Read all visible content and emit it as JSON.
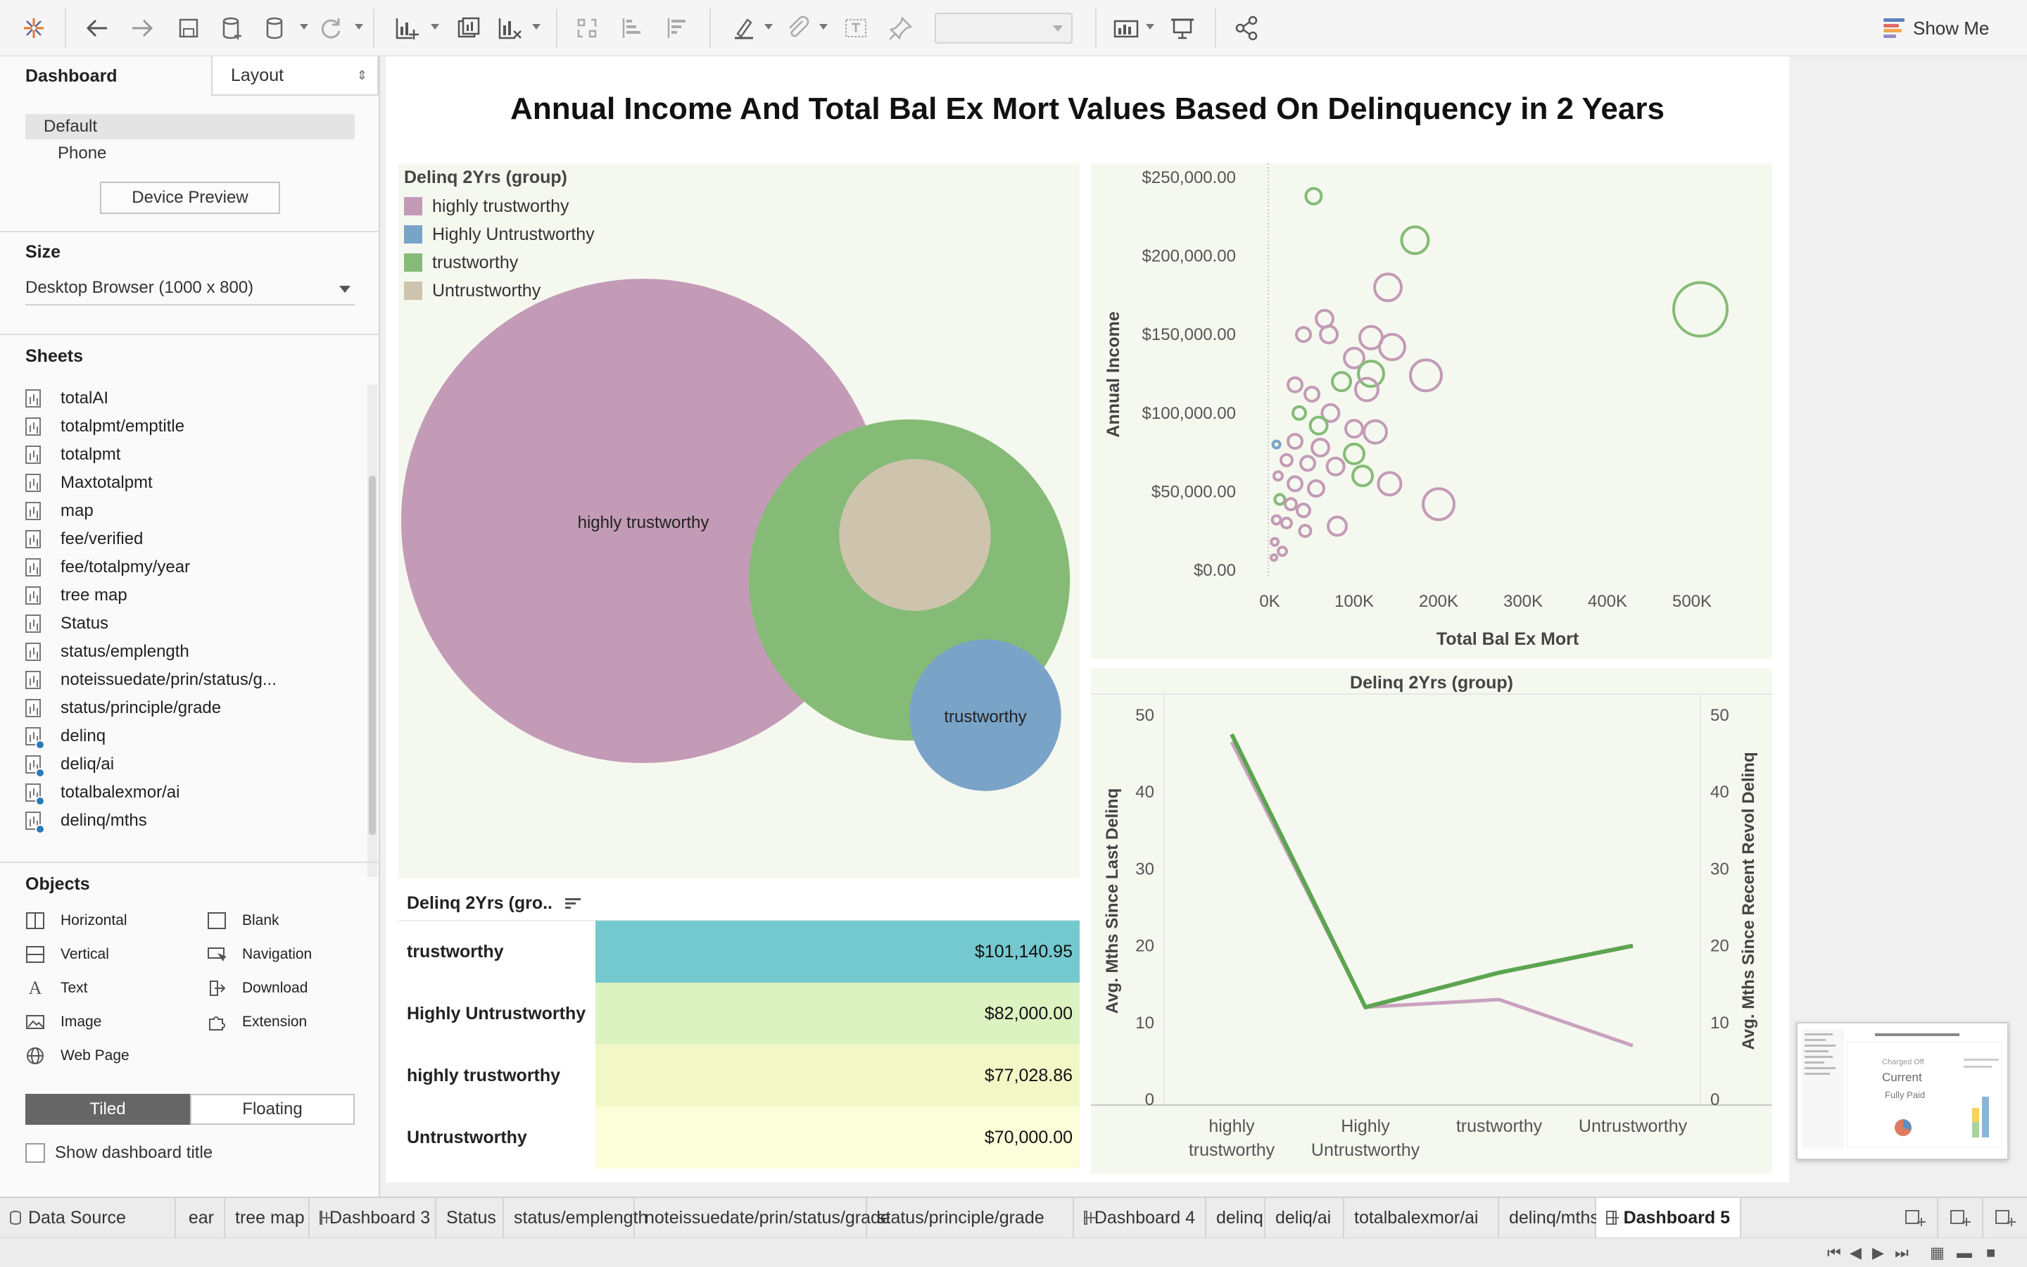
{
  "colors": {
    "highly_trustworthy": "#c39bb6",
    "highly_untrustworthy": "#7aa3c8",
    "trustworthy": "#85bb77",
    "untrustworthy": "#cec4ad",
    "line_dark": "#5ca550",
    "line_light": "#c9a1bf"
  },
  "toolbar": {
    "icons": [
      "tableau-logo-icon",
      "undo-icon",
      "redo-icon",
      "save-icon",
      "new-data-source-icon",
      "pause-updates-icon",
      "refresh-icon",
      "new-worksheet-icon",
      "duplicate-sheet-icon",
      "clear-sheet-icon",
      "swap-icon",
      "sort-ascending-icon",
      "sort-descending-icon",
      "highlight-icon",
      "group-icon",
      "labels-icon",
      "fix-axes-icon",
      "fit-icon",
      "presentation-icon",
      "share-icon"
    ],
    "show_me": "Show Me"
  },
  "left_panel": {
    "tab_dashboard": "Dashboard",
    "tab_layout": "Layout",
    "device_default": "Default",
    "device_phone": "Phone",
    "device_preview": "Device Preview",
    "size_title": "Size",
    "size_value": "Desktop Browser (1000 x 800)",
    "sheets_title": "Sheets",
    "sheets": [
      {
        "name": "totalAI",
        "used": false
      },
      {
        "name": "totalpmt/emptitle",
        "used": false
      },
      {
        "name": "totalpmt",
        "used": false
      },
      {
        "name": "Maxtotalpmt",
        "used": false
      },
      {
        "name": "map",
        "used": false
      },
      {
        "name": "fee/verified",
        "used": false
      },
      {
        "name": "fee/totalpmy/year",
        "used": false
      },
      {
        "name": "tree map",
        "used": false
      },
      {
        "name": "Status",
        "used": false
      },
      {
        "name": "status/emplength",
        "used": false
      },
      {
        "name": "noteissuedate/prin/status/g...",
        "used": false
      },
      {
        "name": "status/principle/grade",
        "used": false
      },
      {
        "name": "delinq",
        "used": true
      },
      {
        "name": "deliq/ai",
        "used": true
      },
      {
        "name": "totalbalexmor/ai",
        "used": true
      },
      {
        "name": "delinq/mths",
        "used": true
      }
    ],
    "objects_title": "Objects",
    "objects": {
      "horizontal": "Horizontal",
      "blank": "Blank",
      "vertical": "Vertical",
      "navigation": "Navigation",
      "text": "Text",
      "download": "Download",
      "image": "Image",
      "extension": "Extension",
      "web_page": "Web Page"
    },
    "tiled": "Tiled",
    "floating": "Floating",
    "show_dashboard_title": "Show dashboard title"
  },
  "dashboard": {
    "title": "Annual Income And Total Bal Ex Mort Values Based On Delinquency in 2 Years"
  },
  "chart_data": [
    {
      "type": "bubble",
      "legend_title": "Delinq 2Yrs (group)",
      "categories": [
        "highly trustworthy",
        "Highly Untrustworthy",
        "trustworthy",
        "Untrustworthy"
      ],
      "relative_size": [
        1.0,
        0.098,
        0.44,
        0.098
      ],
      "labels_shown": [
        "highly trustworthy",
        "trustworthy"
      ]
    },
    {
      "type": "scatter",
      "xlabel": "Total Bal Ex Mort",
      "ylabel": "Annual Income",
      "x_ticks": [
        "0K",
        "100K",
        "200K",
        "300K",
        "400K",
        "500K"
      ],
      "y_ticks": [
        "$0.00",
        "$50,000.00",
        "$100,000.00",
        "$150,000.00",
        "$200,000.00",
        "$250,000.00"
      ],
      "xlim": [
        0,
        530000
      ],
      "ylim": [
        0,
        250000
      ],
      "points": [
        {
          "x": 52000,
          "y": 238000,
          "g": "trustworthy",
          "s": 11
        },
        {
          "x": 172000,
          "y": 210000,
          "g": "trustworthy",
          "s": 19
        },
        {
          "x": 510000,
          "y": 166000,
          "g": "trustworthy",
          "s": 38
        },
        {
          "x": 140000,
          "y": 180000,
          "g": "highly trustworthy",
          "s": 19
        },
        {
          "x": 65000,
          "y": 160000,
          "g": "highly trustworthy",
          "s": 12
        },
        {
          "x": 40000,
          "y": 150000,
          "g": "highly trustworthy",
          "s": 10
        },
        {
          "x": 70000,
          "y": 150000,
          "g": "highly trustworthy",
          "s": 12
        },
        {
          "x": 120000,
          "y": 148000,
          "g": "highly trustworthy",
          "s": 16
        },
        {
          "x": 145000,
          "y": 142000,
          "g": "highly trustworthy",
          "s": 18
        },
        {
          "x": 100000,
          "y": 135000,
          "g": "highly trustworthy",
          "s": 14
        },
        {
          "x": 185000,
          "y": 124000,
          "g": "highly trustworthy",
          "s": 22
        },
        {
          "x": 120000,
          "y": 125000,
          "g": "trustworthy",
          "s": 18
        },
        {
          "x": 85000,
          "y": 120000,
          "g": "trustworthy",
          "s": 13
        },
        {
          "x": 115000,
          "y": 115000,
          "g": "highly trustworthy",
          "s": 16
        },
        {
          "x": 30000,
          "y": 118000,
          "g": "highly trustworthy",
          "s": 10
        },
        {
          "x": 50000,
          "y": 112000,
          "g": "highly trustworthy",
          "s": 10
        },
        {
          "x": 72000,
          "y": 100000,
          "g": "highly trustworthy",
          "s": 12
        },
        {
          "x": 35000,
          "y": 100000,
          "g": "trustworthy",
          "s": 9
        },
        {
          "x": 58000,
          "y": 92000,
          "g": "trustworthy",
          "s": 12
        },
        {
          "x": 100000,
          "y": 90000,
          "g": "highly trustworthy",
          "s": 12
        },
        {
          "x": 125000,
          "y": 88000,
          "g": "highly trustworthy",
          "s": 16
        },
        {
          "x": 8000,
          "y": 80000,
          "g": "Highly Untrustworthy",
          "s": 5
        },
        {
          "x": 30000,
          "y": 82000,
          "g": "highly trustworthy",
          "s": 10
        },
        {
          "x": 60000,
          "y": 78000,
          "g": "highly trustworthy",
          "s": 12
        },
        {
          "x": 100000,
          "y": 74000,
          "g": "trustworthy",
          "s": 14
        },
        {
          "x": 20000,
          "y": 70000,
          "g": "highly trustworthy",
          "s": 8
        },
        {
          "x": 45000,
          "y": 68000,
          "g": "highly trustworthy",
          "s": 10
        },
        {
          "x": 78000,
          "y": 66000,
          "g": "highly trustworthy",
          "s": 12
        },
        {
          "x": 110000,
          "y": 60000,
          "g": "trustworthy",
          "s": 14
        },
        {
          "x": 142000,
          "y": 55000,
          "g": "highly trustworthy",
          "s": 16
        },
        {
          "x": 10000,
          "y": 60000,
          "g": "highly trustworthy",
          "s": 6
        },
        {
          "x": 30000,
          "y": 55000,
          "g": "highly trustworthy",
          "s": 10
        },
        {
          "x": 55000,
          "y": 52000,
          "g": "highly trustworthy",
          "s": 11
        },
        {
          "x": 12000,
          "y": 45000,
          "g": "trustworthy",
          "s": 7
        },
        {
          "x": 200000,
          "y": 42000,
          "g": "highly trustworthy",
          "s": 22
        },
        {
          "x": 25000,
          "y": 42000,
          "g": "highly trustworthy",
          "s": 8
        },
        {
          "x": 40000,
          "y": 38000,
          "g": "highly trustworthy",
          "s": 9
        },
        {
          "x": 80000,
          "y": 28000,
          "g": "highly trustworthy",
          "s": 13
        },
        {
          "x": 20000,
          "y": 30000,
          "g": "highly trustworthy",
          "s": 7
        },
        {
          "x": 8000,
          "y": 32000,
          "g": "highly trustworthy",
          "s": 6
        },
        {
          "x": 42000,
          "y": 25000,
          "g": "highly trustworthy",
          "s": 8
        },
        {
          "x": 6000,
          "y": 18000,
          "g": "highly trustworthy",
          "s": 5
        },
        {
          "x": 15000,
          "y": 12000,
          "g": "highly trustworthy",
          "s": 6
        },
        {
          "x": 5000,
          "y": 8000,
          "g": "highly trustworthy",
          "s": 4
        }
      ]
    },
    {
      "type": "table",
      "header": "Delinq 2Yrs (gro..",
      "rows": [
        {
          "label": "trustworthy",
          "value": "$101,140.95",
          "color": "#74c9cf"
        },
        {
          "label": "Highly Untrustworthy",
          "value": "$82,000.00",
          "color": "#dcf2c1"
        },
        {
          "label": "highly trustworthy",
          "value": "$77,028.86",
          "color": "#f1f8c6"
        },
        {
          "label": "Untrustworthy",
          "value": "$70,000.00",
          "color": "#fcfdd9"
        }
      ]
    },
    {
      "type": "line",
      "title": "Delinq 2Yrs (group)",
      "categories": [
        "highly trustworthy",
        "Highly Untrustworthy",
        "trustworthy",
        "Untrustworthy"
      ],
      "category_labels": [
        [
          "highly",
          "trustworthy"
        ],
        [
          "Highly",
          "Untrustworthy"
        ],
        [
          "trustworthy"
        ],
        [
          "Untrustworthy"
        ]
      ],
      "ylabel_left": "Avg. Mths Since Last Delinq",
      "ylabel_right": "Avg. Mths Since Recent Revol Delinq",
      "y_ticks": [
        "0",
        "10",
        "20",
        "30",
        "40",
        "50"
      ],
      "ylim": [
        0,
        52
      ],
      "series": [
        {
          "values": [
            46.5,
            12,
            13,
            7
          ],
          "color": "#c9a1bf"
        },
        {
          "values": [
            47.5,
            12,
            16.5,
            20
          ],
          "color": "#5ca550"
        }
      ]
    }
  ],
  "thumbnail": {
    "labels": [
      "Charged Off",
      "Current",
      "Fully Paid"
    ]
  },
  "bottom_tabs": [
    {
      "label": "Data Source",
      "type": "datasource"
    },
    {
      "label": "ear",
      "type": "sheet"
    },
    {
      "label": "tree map",
      "type": "sheet"
    },
    {
      "label": "Dashboard 3",
      "type": "dashboard"
    },
    {
      "label": "Status",
      "type": "sheet"
    },
    {
      "label": "status/emplength",
      "type": "sheet"
    },
    {
      "label": "noteissuedate/prin/status/grade",
      "type": "sheet"
    },
    {
      "label": "status/principle/grade",
      "type": "sheet"
    },
    {
      "label": "Dashboard 4",
      "type": "dashboard"
    },
    {
      "label": "delinq",
      "type": "sheet"
    },
    {
      "label": "deliq/ai",
      "type": "sheet"
    },
    {
      "label": "totalbalexmor/ai",
      "type": "sheet"
    },
    {
      "label": "delinq/mths",
      "type": "sheet"
    },
    {
      "label": "Dashboard 5",
      "type": "dashboard",
      "active": true
    }
  ],
  "tab_actions": [
    "new-worksheet-icon",
    "new-dashboard-icon",
    "new-story-icon"
  ]
}
